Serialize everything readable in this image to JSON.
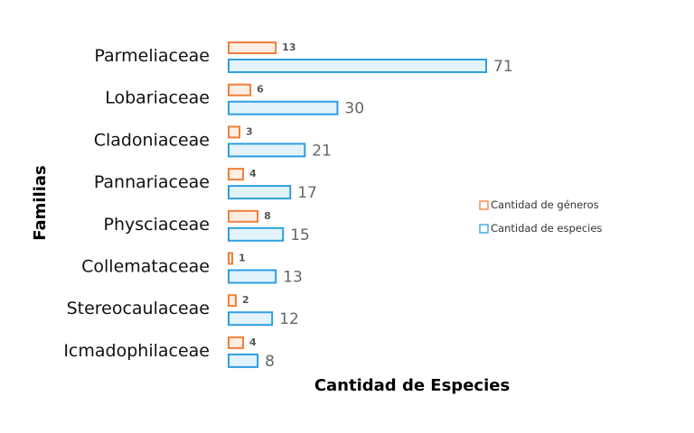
{
  "chart_data": {
    "type": "bar",
    "orientation": "horizontal",
    "categories": [
      "Parmeliaceae",
      "Lobariaceae",
      "Cladoniaceae",
      "Pannariaceae",
      "Physciaceae",
      "Collemataceae",
      "Stereocaulaceae",
      "Icmadophilaceae"
    ],
    "series": [
      {
        "name": "Cantidad de géneros",
        "values": [
          13,
          6,
          3,
          4,
          8,
          1,
          2,
          4
        ],
        "color": "#f07f3c"
      },
      {
        "name": "Cantidad de especies",
        "values": [
          71,
          30,
          21,
          17,
          15,
          13,
          12,
          8
        ],
        "color": "#2e9fe0"
      }
    ],
    "xlabel": "Cantidad de Especies",
    "ylabel": "Familias",
    "title": "",
    "grid": false,
    "legend_position": "right",
    "data_labels": true
  }
}
